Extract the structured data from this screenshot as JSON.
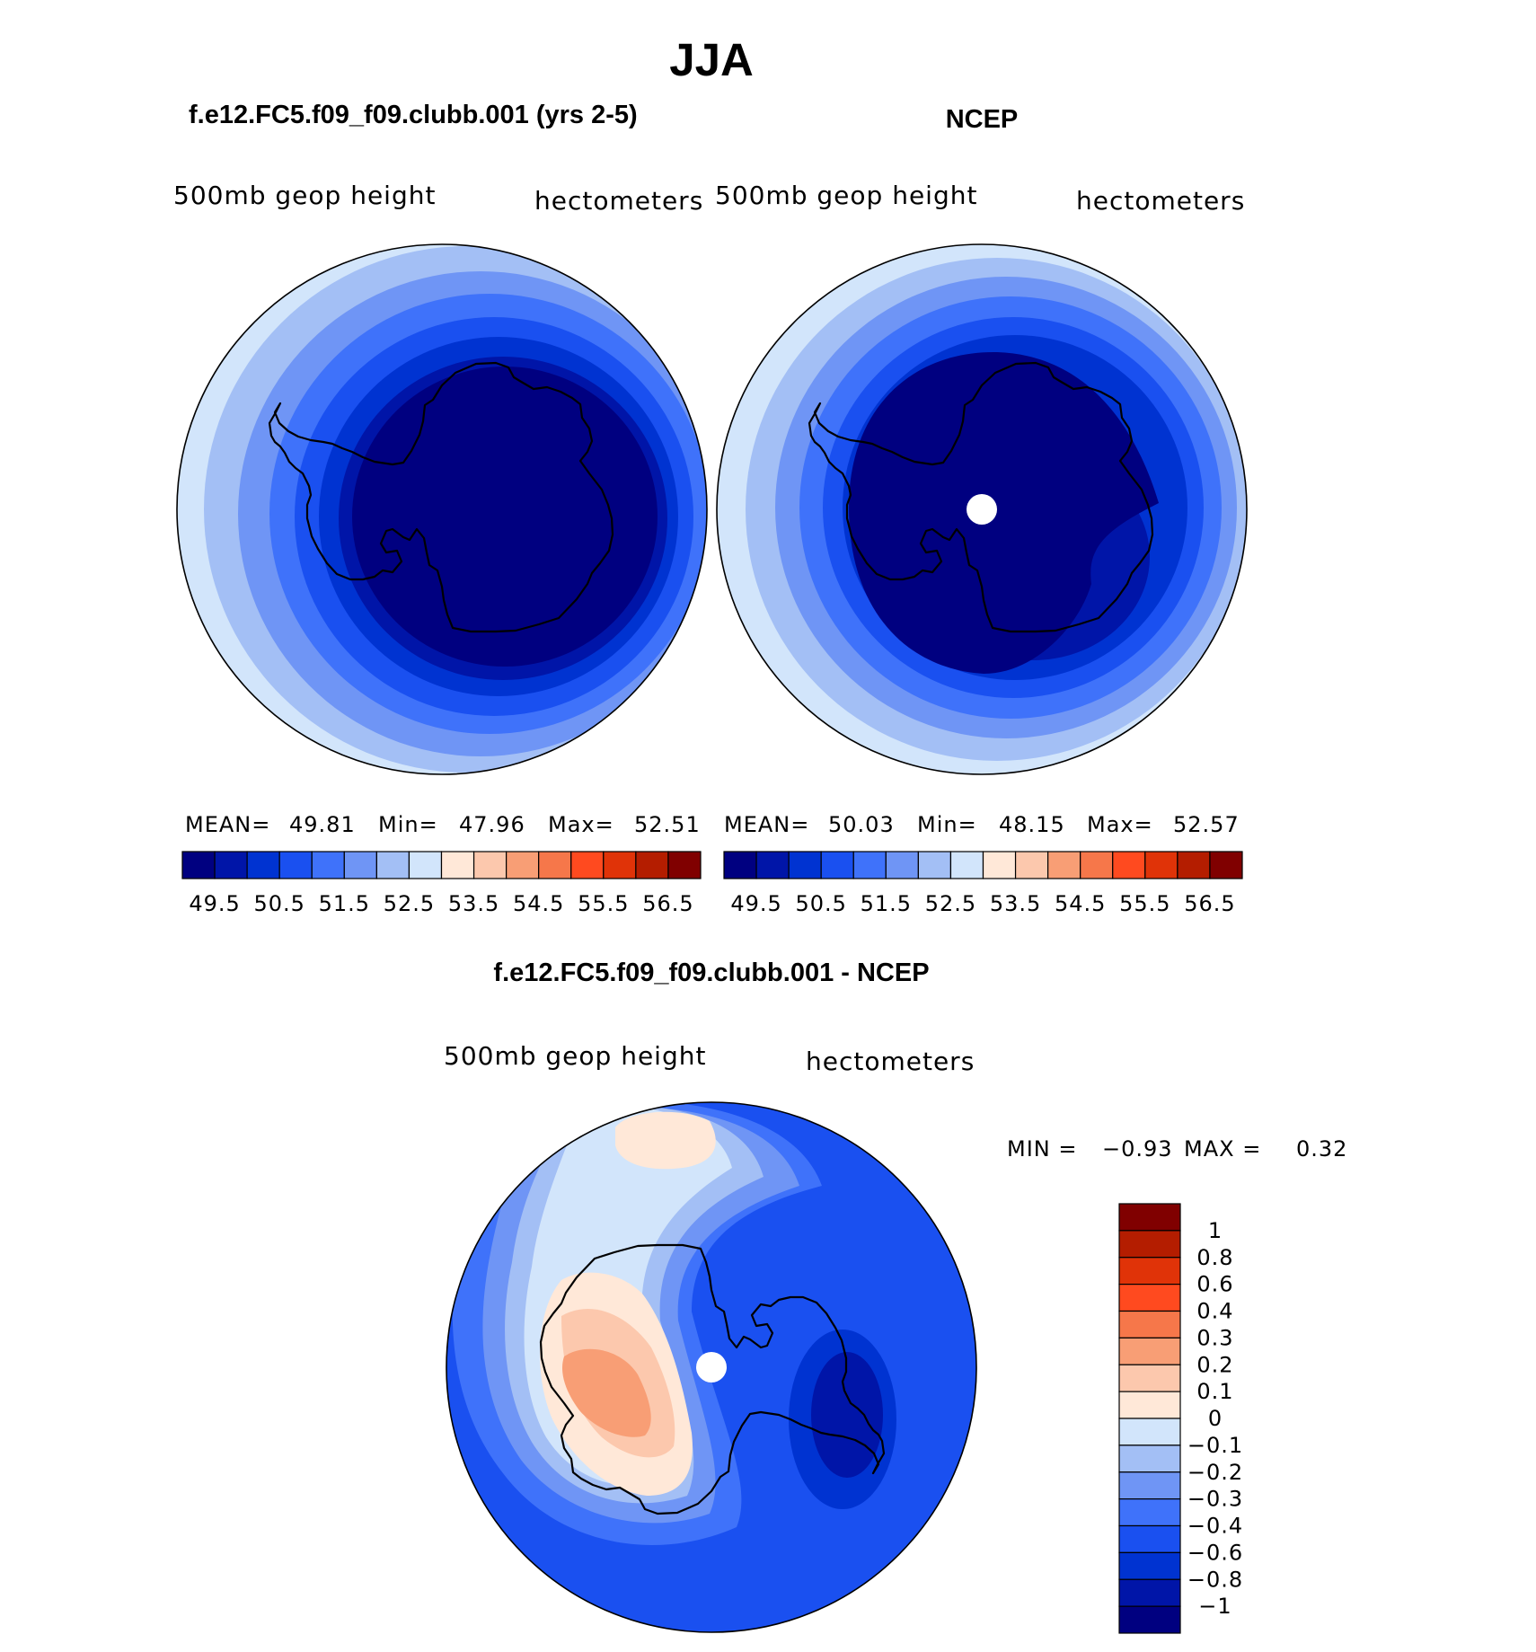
{
  "figure_title": "JJA",
  "colors": {
    "abs_scale": [
      "#000080",
      "#0015a8",
      "#0033d1",
      "#1a50f0",
      "#3f72fa",
      "#6f95f5",
      "#a3bff5",
      "#d2e5fb",
      "#ffe8d8",
      "#fcc8ad",
      "#f89e75",
      "#f6774a",
      "#ff4a1f",
      "#e03308",
      "#b41d00",
      "#800000"
    ],
    "diff_scale": [
      "#000080",
      "#0015a8",
      "#0033d1",
      "#1a50f0",
      "#3f72fa",
      "#6f95f5",
      "#a3bff5",
      "#d2e5fb",
      "#ffe8d8",
      "#fcc8ad",
      "#f89e75",
      "#f6774a",
      "#ff4a1f",
      "#e03308",
      "#b41d00",
      "#800000"
    ]
  },
  "panels": {
    "model": {
      "title": "f.e12.FC5.f09_f09.clubb.001 (yrs 2-5)",
      "variable": "500mb  geop  height",
      "units": "hectometers",
      "stats": {
        "mean_label": "MEAN=",
        "mean": "49.81",
        "min_label": "Min=",
        "min": "47.96",
        "max_label": "Max=",
        "max": "52.51"
      }
    },
    "obs": {
      "title": "NCEP",
      "variable": "500mb  geop  height",
      "units": "hectometers",
      "stats": {
        "mean_label": "MEAN=",
        "mean": "50.03",
        "min_label": "Min=",
        "min": "48.15",
        "max_label": "Max=",
        "max": "52.57"
      }
    },
    "diff": {
      "title": "f.e12.FC5.f09_f09.clubb.001 - NCEP",
      "variable": "500mb  geop  height",
      "units": "hectometers",
      "stats": {
        "min_label": "MIN =",
        "min": "−0.93",
        "max_label": "MAX =",
        "max": "0.32"
      }
    }
  },
  "colorbars": {
    "abs_ticks": [
      "49.5",
      "50.5",
      "51.5",
      "52.5",
      "53.5",
      "54.5",
      "55.5",
      "56.5"
    ],
    "diff_ticks": [
      "1",
      "0.8",
      "0.6",
      "0.4",
      "0.3",
      "0.2",
      "0.1",
      "0",
      "−0.1",
      "−0.2",
      "−0.3",
      "−0.4",
      "−0.6",
      "−0.8",
      "−1"
    ]
  }
}
